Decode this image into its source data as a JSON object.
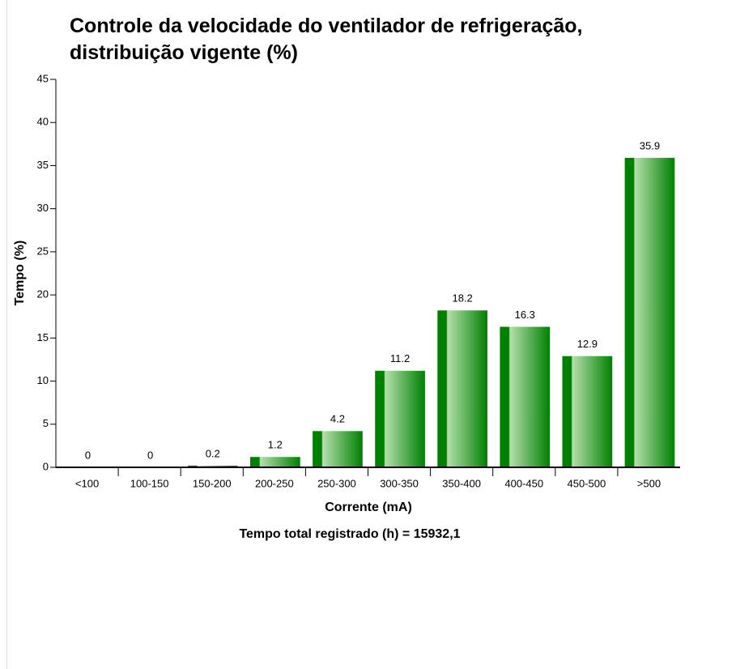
{
  "chart_data": {
    "type": "bar",
    "title": "Controle da velocidade do ventilador de refrigeração, distribuição vigente (%)",
    "x_label": "Corrente (mA)",
    "y_label": "Tempo (%)",
    "footnote": "Tempo total registrado (h) = 15932,1",
    "categories": [
      "<100",
      "100-150",
      "150-200",
      "200-250",
      "250-300",
      "300-350",
      "350-400",
      "400-450",
      "450-500",
      ">500"
    ],
    "values": [
      0,
      0,
      0.2,
      1.2,
      4.2,
      11.2,
      18.2,
      16.3,
      12.9,
      35.9
    ],
    "color": "#008000",
    "ylim": [
      0,
      45
    ],
    "yticks": [
      0,
      5,
      10,
      15,
      20,
      25,
      30,
      35,
      40,
      45
    ],
    "grid": false
  }
}
